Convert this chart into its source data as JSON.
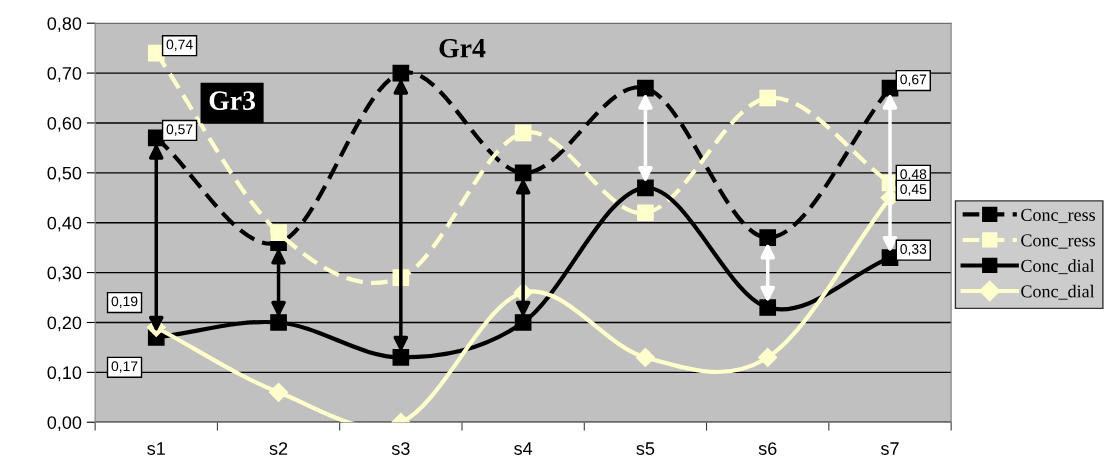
{
  "chart_data": {
    "type": "line",
    "categories": [
      "s1",
      "s2",
      "s3",
      "s4",
      "s5",
      "s6",
      "s7"
    ],
    "series": [
      {
        "name": "Conc_ress",
        "color": "#000000",
        "marker": "square",
        "line_style": "dashed",
        "values": [
          0.57,
          0.36,
          0.7,
          0.5,
          0.67,
          0.37,
          0.67
        ],
        "value_labels": [
          "0,57",
          null,
          null,
          null,
          null,
          null,
          "0,67"
        ]
      },
      {
        "name": "Conc_ress",
        "color": "#ffffcc",
        "marker": "square",
        "line_style": "dashed",
        "values": [
          0.74,
          0.38,
          0.29,
          0.58,
          0.42,
          0.65,
          0.48
        ],
        "value_labels": [
          "0,74",
          null,
          null,
          null,
          null,
          null,
          "0,48"
        ]
      },
      {
        "name": "Conc_dial",
        "color": "#000000",
        "marker": "square",
        "line_style": "solid",
        "values": [
          0.17,
          0.2,
          0.13,
          0.2,
          0.47,
          0.23,
          0.33
        ],
        "value_labels": [
          "0,17",
          null,
          null,
          null,
          null,
          null,
          "0,33"
        ]
      },
      {
        "name": "Conc_dial",
        "color": "#ffffcc",
        "marker": "diamond",
        "line_style": "solid",
        "values": [
          0.19,
          0.06,
          0.0,
          0.26,
          0.13,
          0.13,
          0.45
        ],
        "value_labels": [
          "0,19",
          null,
          null,
          null,
          null,
          null,
          "0,45"
        ]
      }
    ],
    "ylim": [
      0,
      0.8
    ],
    "yticks": [
      {
        "value": 0,
        "label": "0,00"
      },
      {
        "value": 0.1,
        "label": "0,10"
      },
      {
        "value": 0.2,
        "label": "0,20"
      },
      {
        "value": 0.3,
        "label": "0,30"
      },
      {
        "value": 0.4,
        "label": "0,40"
      },
      {
        "value": 0.5,
        "label": "0,50"
      },
      {
        "value": 0.6,
        "label": "0,60"
      },
      {
        "value": 0.7,
        "label": "0,70"
      },
      {
        "value": 0.8,
        "label": "0,80"
      }
    ],
    "grid": "y",
    "legend": "right",
    "annotations": [
      "Gr3",
      "Gr4"
    ]
  }
}
